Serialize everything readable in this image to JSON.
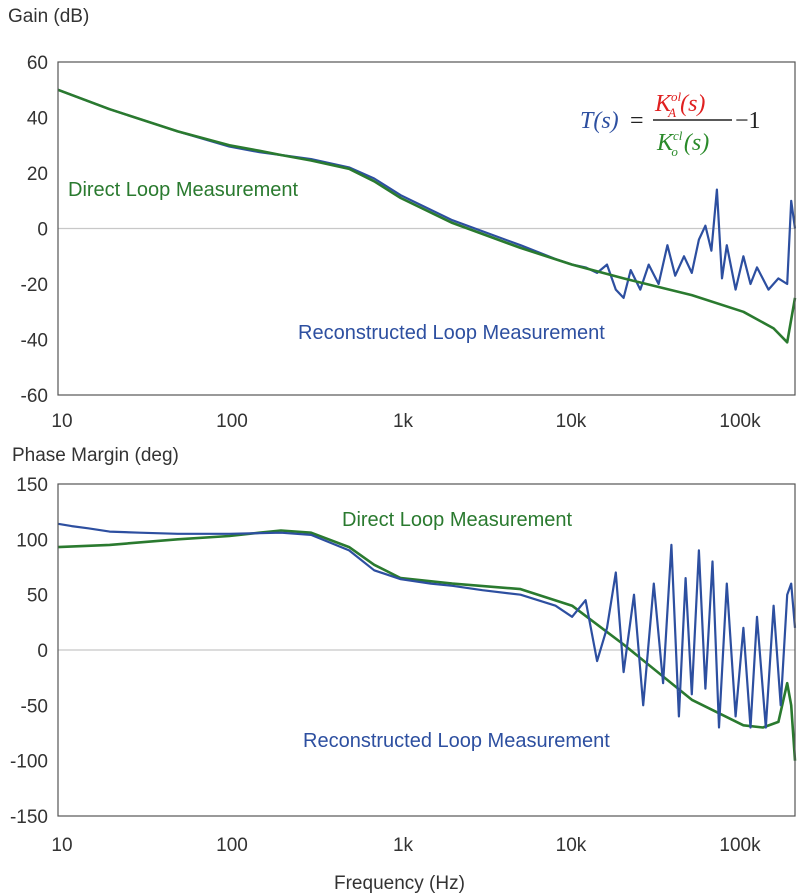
{
  "colors": {
    "direct": "#2a7a2f",
    "reconstructed": "#2d4fa0",
    "zero_line": "#c8c8c8",
    "frame": "#555555",
    "equation_numerator": "#e02020",
    "equation_denominator": "#2a8a2a",
    "equation_lhs": "#2d4fa0",
    "equation_rest": "#222222"
  },
  "equation": {
    "lhs": "T(s)",
    "equals": "=",
    "numerator": "K",
    "numerator_sup": "ol",
    "numerator_sub": "A",
    "numerator_arg": "(s)",
    "denominator": "K",
    "denominator_sup": "cl",
    "denominator_sub": "o",
    "denominator_arg": "(s)",
    "minus_one": "−1"
  },
  "chart_data": [
    {
      "type": "line",
      "ylabel": "Gain (dB)",
      "xlabel": "",
      "xscale": "log",
      "xlim": [
        10,
        200000
      ],
      "ylim": [
        -60,
        60
      ],
      "yticks": [
        "60",
        "40",
        "20",
        "0",
        "-20",
        "-40",
        "-60"
      ],
      "xticks": [
        "10",
        "100",
        "1k",
        "10k",
        "100k"
      ],
      "grid": "zero line only",
      "annotations": [
        "Direct Loop Measurement",
        "Reconstructed Loop Measurement"
      ],
      "series": [
        {
          "name": "Direct Loop Measurement",
          "x": [
            10,
            20,
            50,
            100,
            150,
            200,
            300,
            500,
            700,
            1000,
            2000,
            5000,
            10000,
            20000,
            50000,
            100000,
            150000,
            180000,
            200000
          ],
          "y": [
            50,
            43,
            35,
            30,
            28,
            26.5,
            24.5,
            21.5,
            17,
            11,
            2,
            -7,
            -13,
            -18,
            -24,
            -30,
            -36,
            -41,
            -25
          ]
        },
        {
          "name": "Reconstructed Loop Measurement",
          "x": [
            10,
            20,
            50,
            100,
            150,
            200,
            300,
            500,
            700,
            1000,
            2000,
            5000,
            8000,
            10000,
            12000,
            14000,
            16000,
            18000,
            20000,
            22000,
            25000,
            28000,
            32000,
            36000,
            40000,
            45000,
            50000,
            55000,
            60000,
            65000,
            70000,
            75000,
            80000,
            90000,
            100000,
            110000,
            120000,
            140000,
            160000,
            180000,
            190000,
            200000
          ],
          "y": [
            50,
            43,
            35,
            29.5,
            27.5,
            26.5,
            25,
            22,
            18,
            12,
            3,
            -6,
            -11,
            -13,
            -14,
            -16,
            -13,
            -22,
            -25,
            -15,
            -22,
            -13,
            -20,
            -6,
            -17,
            -10,
            -16,
            -4,
            1,
            -8,
            14,
            -18,
            -6,
            -22,
            -10,
            -20,
            -14,
            -22,
            -18,
            -20,
            10,
            0
          ]
        }
      ]
    },
    {
      "type": "line",
      "ylabel": "Phase Margin (deg)",
      "xlabel": "Frequency (Hz)",
      "xscale": "log",
      "xlim": [
        10,
        200000
      ],
      "ylim": [
        -150,
        150
      ],
      "yticks": [
        "150",
        "100",
        "50",
        "0",
        "-50",
        "-100",
        "-150"
      ],
      "xticks": [
        "10",
        "100",
        "1k",
        "10k",
        "100k"
      ],
      "grid": "zero line only",
      "annotations": [
        "Direct Loop Measurement",
        "Reconstructed Loop Measurement"
      ],
      "series": [
        {
          "name": "Direct Loop Measurement",
          "x": [
            10,
            20,
            50,
            100,
            150,
            200,
            300,
            500,
            700,
            1000,
            2000,
            5000,
            10000,
            20000,
            50000,
            100000,
            130000,
            160000,
            180000,
            190000,
            200000
          ],
          "y": [
            93,
            95,
            100,
            103,
            106,
            108,
            106,
            93,
            77,
            65,
            60,
            55,
            40,
            5,
            -45,
            -68,
            -70,
            -65,
            -30,
            -50,
            -100
          ]
        },
        {
          "name": "Reconstructed Loop Measurement",
          "x": [
            10,
            12,
            15,
            20,
            30,
            50,
            100,
            200,
            300,
            500,
            700,
            1000,
            1500,
            2000,
            3000,
            5000,
            8000,
            10000,
            12000,
            14000,
            16000,
            18000,
            20000,
            23000,
            26000,
            30000,
            34000,
            38000,
            42000,
            46000,
            50000,
            55000,
            60000,
            66000,
            72000,
            80000,
            90000,
            100000,
            110000,
            120000,
            135000,
            150000,
            165000,
            180000,
            190000,
            200000
          ],
          "y": [
            114,
            112,
            110,
            107,
            106,
            105,
            105,
            106,
            104,
            90,
            72,
            64,
            60,
            58,
            54,
            50,
            40,
            30,
            45,
            -10,
            20,
            70,
            -20,
            50,
            -50,
            60,
            -30,
            95,
            -60,
            65,
            -40,
            90,
            -35,
            80,
            -70,
            60,
            -60,
            20,
            -70,
            30,
            -70,
            40,
            -50,
            50,
            60,
            20
          ]
        }
      ]
    }
  ],
  "labels": {
    "gain_title": "Gain (dB)",
    "phase_title": "Phase Margin (deg)",
    "freq_title": "Frequency (Hz)",
    "gain_direct": "Direct Loop Measurement",
    "gain_recon": "Reconstructed Loop Measurement",
    "phase_direct": "Direct Loop Measurement",
    "phase_recon": "Reconstructed Loop Measurement"
  }
}
